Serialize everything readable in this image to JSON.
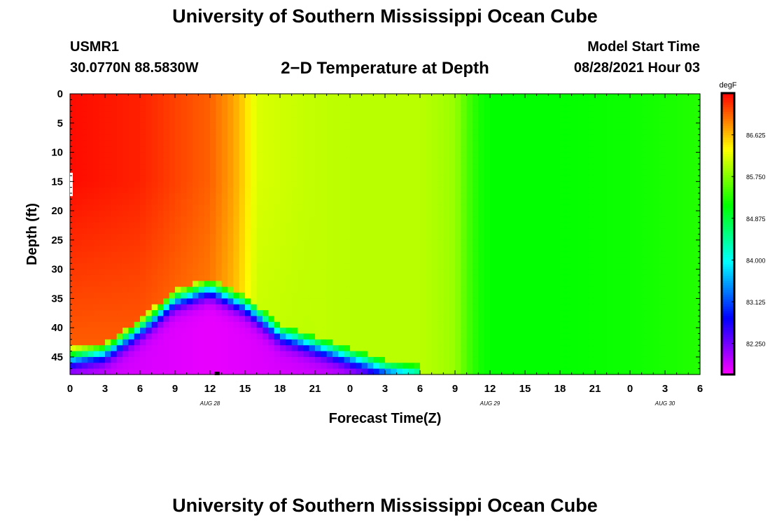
{
  "header": {
    "title": "University of Southern Mississippi Ocean Cube",
    "station_id": "USMR1",
    "coordinates": "30.0770N  88.5830W",
    "plot_title": "2−D Temperature at Depth",
    "model_label": "Model Start Time",
    "model_time": "08/28/2021 Hour 03"
  },
  "footer": {
    "title": "University of Southern Mississippi Ocean Cube"
  },
  "chart_data": {
    "type": "heatmap",
    "xlabel": "Forecast Time(Z)",
    "ylabel": "Depth (ft)",
    "x_tick_labels": [
      "0",
      "3",
      "6",
      "9",
      "12",
      "15",
      "18",
      "21",
      "0",
      "3",
      "6",
      "9",
      "12",
      "15",
      "18",
      "21",
      "0",
      "3",
      "6"
    ],
    "x_range_hours": [
      0,
      54
    ],
    "date_labels": [
      {
        "text": "AUG 28",
        "hour": 12
      },
      {
        "text": "AUG 29",
        "hour": 36
      },
      {
        "text": "AUG 30",
        "hour": 51
      }
    ],
    "y_tick_labels": [
      "0",
      "5",
      "10",
      "15",
      "20",
      "25",
      "30",
      "35",
      "40",
      "45"
    ],
    "y_range_ft": [
      0,
      48
    ],
    "colorbar": {
      "unit": "degF",
      "tick_labels": [
        "86.625",
        "85.750",
        "84.875",
        "84.000",
        "83.125",
        "82.250"
      ],
      "tick_values": [
        86.625,
        85.75,
        84.875,
        84.0,
        83.125,
        82.25
      ],
      "min": 81.6,
      "max": 87.5
    },
    "surface_temperature_by_hour": {
      "hours": [
        0,
        6,
        12,
        14,
        15,
        16,
        20,
        24,
        30,
        33,
        34,
        35,
        36,
        42,
        48,
        54
      ],
      "values": [
        87.45,
        87.35,
        87.05,
        86.75,
        86.5,
        86.15,
        86.05,
        86.0,
        86.0,
        85.85,
        85.5,
        85.25,
        85.15,
        85.15,
        85.2,
        85.3
      ]
    },
    "bottom_layer": {
      "hours": [
        0,
        3,
        6,
        9,
        12,
        15,
        18,
        21,
        24,
        27,
        30
      ],
      "upper_depth_ft": [
        45,
        44,
        40,
        35,
        33,
        36,
        41,
        43,
        45,
        47,
        48
      ],
      "min_temperature": 81.7
    }
  }
}
